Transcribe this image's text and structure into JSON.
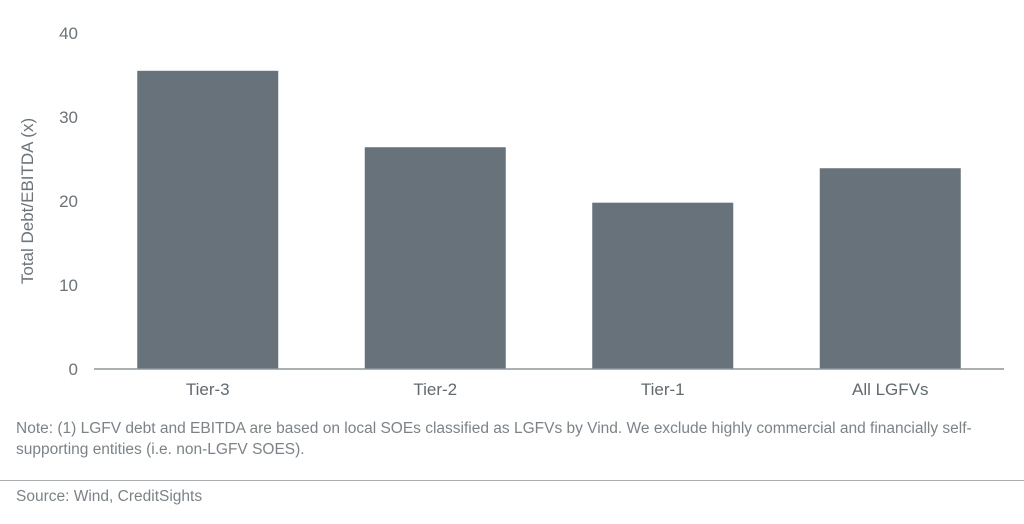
{
  "chart_data": {
    "type": "bar",
    "categories": [
      "Tier-3",
      "Tier-2",
      "Tier-1",
      "All LGFVs"
    ],
    "values": [
      35.5,
      26.4,
      19.8,
      23.9
    ],
    "ylabel": "Total Debt/EBITDA (x)",
    "xlabel": "",
    "ylim": [
      0,
      40
    ],
    "yticks": [
      0,
      10,
      20,
      30,
      40
    ],
    "grid": false,
    "legend": "none",
    "bar_color": "#67727a"
  },
  "note": "Note: (1) LGFV debt and EBITDA are based on local SOEs classified as LGFVs by Vind. We exclude highly commercial and financially self-supporting entities (i.e. non-LGFV SOES).",
  "source": "Source: Wind, CreditSights"
}
